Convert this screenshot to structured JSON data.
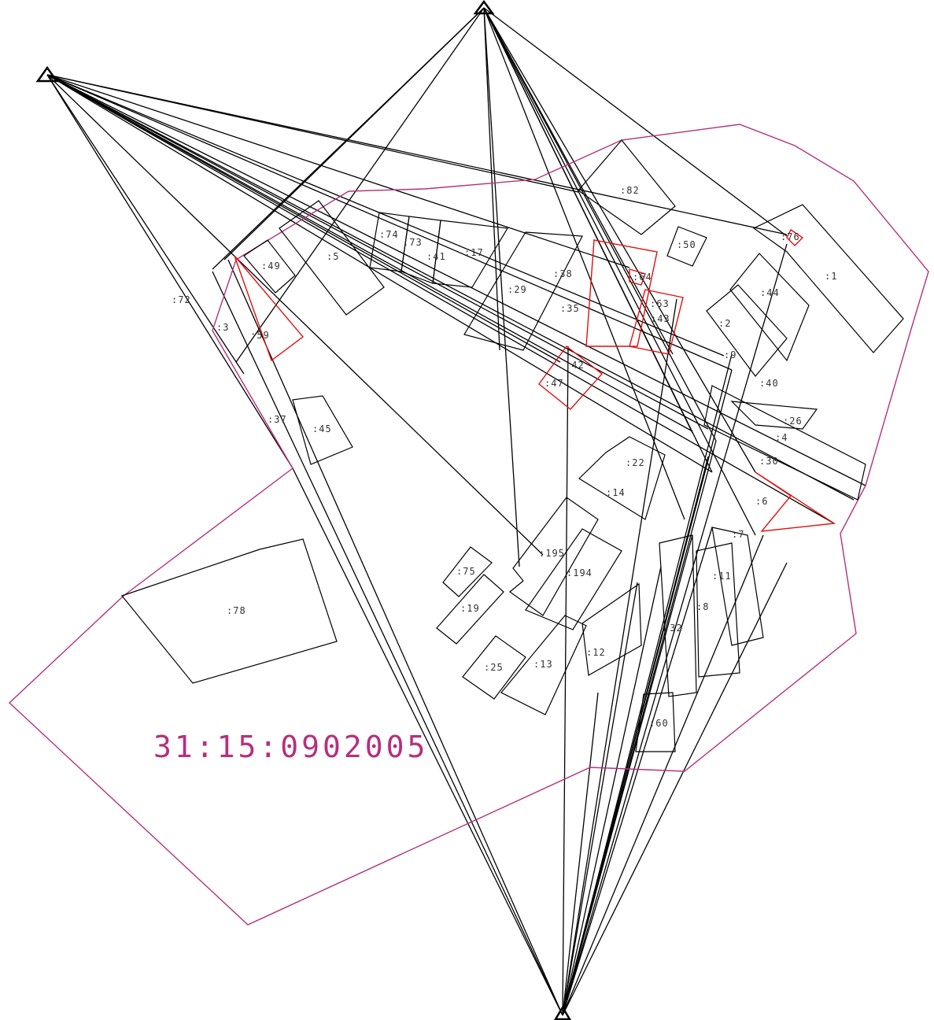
{
  "block": "31:15:0902005",
  "parcels": [
    ":82",
    ":50",
    ":76",
    ":1",
    ":49",
    ":5",
    ":74",
    ":73",
    ":41",
    ":17",
    ":29",
    ":38",
    ":35",
    ":64",
    ":63",
    ":43",
    ":2",
    ":44",
    ":59",
    ":37",
    ":45",
    ":47",
    ":42",
    ":9",
    ":40",
    ":26",
    ":4",
    ":30",
    ":22",
    ":14",
    ":6",
    ":7",
    ":11",
    ":8",
    ":195",
    ":194",
    ":75",
    ":19",
    ":25",
    ":13",
    ":12",
    ":32",
    ":60",
    ":78",
    ":3",
    ":72"
  ]
}
